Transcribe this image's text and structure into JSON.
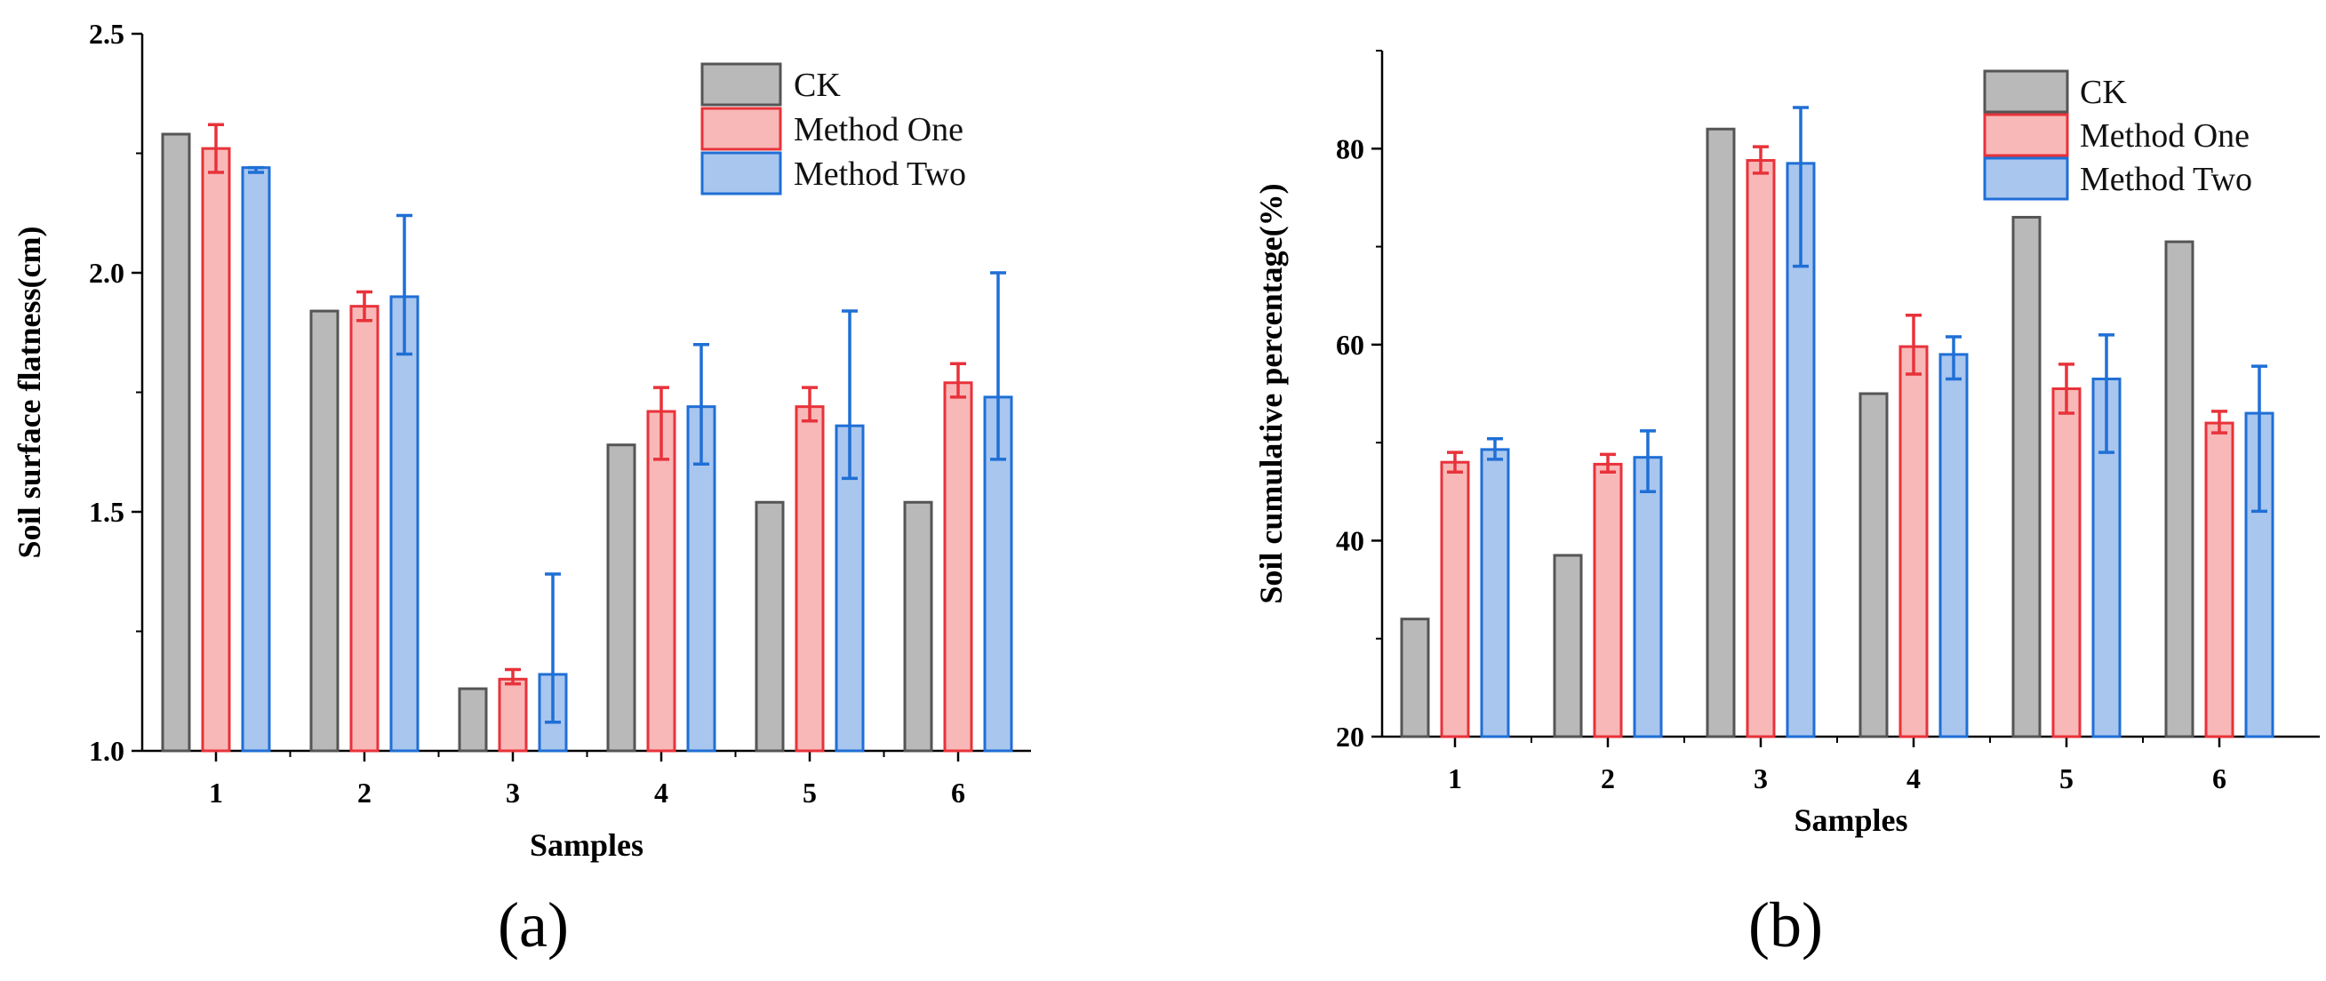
{
  "colors": {
    "ck_fill": "#b9b9b9",
    "ck_edge": "#555555",
    "m1_fill": "#f8b8b8",
    "m1_edge": "#e8323a",
    "m2_fill": "#a9c6ef",
    "m2_edge": "#1f6fd6"
  },
  "chart_data": [
    {
      "type": "bar",
      "panel_label": "(a)",
      "categories": [
        "1",
        "2",
        "3",
        "4",
        "5",
        "6"
      ],
      "xlabel": "Samples",
      "ylabel": "Soil surface flatness(cm)",
      "ylim": [
        1.0,
        2.5
      ],
      "yticks": [
        "1.0",
        "1.5",
        "2.0",
        "2.5"
      ],
      "legend_position": "top-right",
      "series": [
        {
          "name": "CK",
          "values": [
            2.29,
            1.92,
            1.13,
            1.64,
            1.52,
            1.52
          ]
        },
        {
          "name": "Method One",
          "values": [
            2.26,
            1.93,
            1.15,
            1.71,
            1.72,
            1.77
          ],
          "error_low": [
            2.21,
            1.9,
            1.14,
            1.61,
            1.69,
            1.74
          ],
          "error_high": [
            2.31,
            1.96,
            1.17,
            1.76,
            1.76,
            1.81
          ]
        },
        {
          "name": "Method Two",
          "values": [
            2.22,
            1.95,
            1.16,
            1.72,
            1.68,
            1.74
          ],
          "error_low": [
            2.21,
            1.83,
            1.06,
            1.6,
            1.57,
            1.61
          ],
          "error_high": [
            2.22,
            2.12,
            1.37,
            1.85,
            1.92,
            2.0
          ]
        }
      ]
    },
    {
      "type": "bar",
      "panel_label": "(b)",
      "categories": [
        "1",
        "2",
        "3",
        "4",
        "5",
        "6"
      ],
      "xlabel": "Samples",
      "ylabel": "Soil cumulative percentage(%)",
      "ylim": [
        20,
        90
      ],
      "yticks": [
        "20",
        "40",
        "60",
        "80"
      ],
      "legend_position": "top-right",
      "series": [
        {
          "name": "CK",
          "values": [
            32,
            38.5,
            82,
            55,
            73,
            70.5
          ]
        },
        {
          "name": "Method One",
          "values": [
            48,
            47.8,
            78.8,
            59.8,
            55.5,
            52
          ],
          "error_low": [
            47,
            47,
            77.5,
            57,
            53,
            51
          ],
          "error_high": [
            49,
            48.8,
            80.2,
            63,
            58,
            53.2
          ]
        },
        {
          "name": "Method Two",
          "values": [
            49.3,
            48.5,
            78.5,
            59,
            56.5,
            53
          ],
          "error_low": [
            48.3,
            45,
            68,
            56.5,
            49,
            43
          ],
          "error_high": [
            50.4,
            51.2,
            84.2,
            60.8,
            61,
            57.8
          ]
        }
      ]
    }
  ]
}
